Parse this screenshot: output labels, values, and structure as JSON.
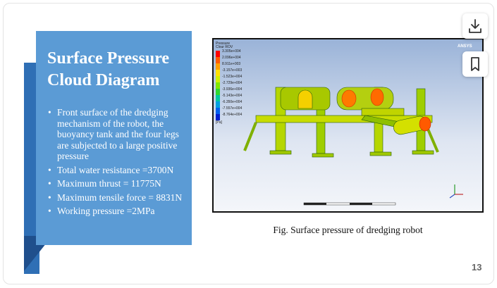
{
  "slide": {
    "title_lines": [
      "Surface Pressure",
      "Cloud Diagram"
    ],
    "bullets": [
      "Front surface of the dredging mechanism of the robot, the buoyancy tank and the four legs are subjected to a large positive pressure",
      "Total water resistance =3700N",
      "Maximum thrust = 11775N",
      "Maximum tensile force = 8831N",
      "Working pressure =2MPa"
    ],
    "figure": {
      "legend_title": [
        "Pressure",
        "Clour ROV"
      ],
      "legend_values": [
        "3.305e+004",
        "2.096e+004",
        "8.911e+003",
        "-3.157e+003",
        "-1.523e+004",
        "-2.729e+004",
        "-3.936e+004",
        "-5.143e+004",
        "-6.350e+004",
        "-7.557e+004",
        "-8.764e+004"
      ],
      "legend_unit": "[Pa]",
      "brand": "ANSYS"
    },
    "caption": "Fig. Surface pressure of dredging robot",
    "page_number": "13"
  }
}
